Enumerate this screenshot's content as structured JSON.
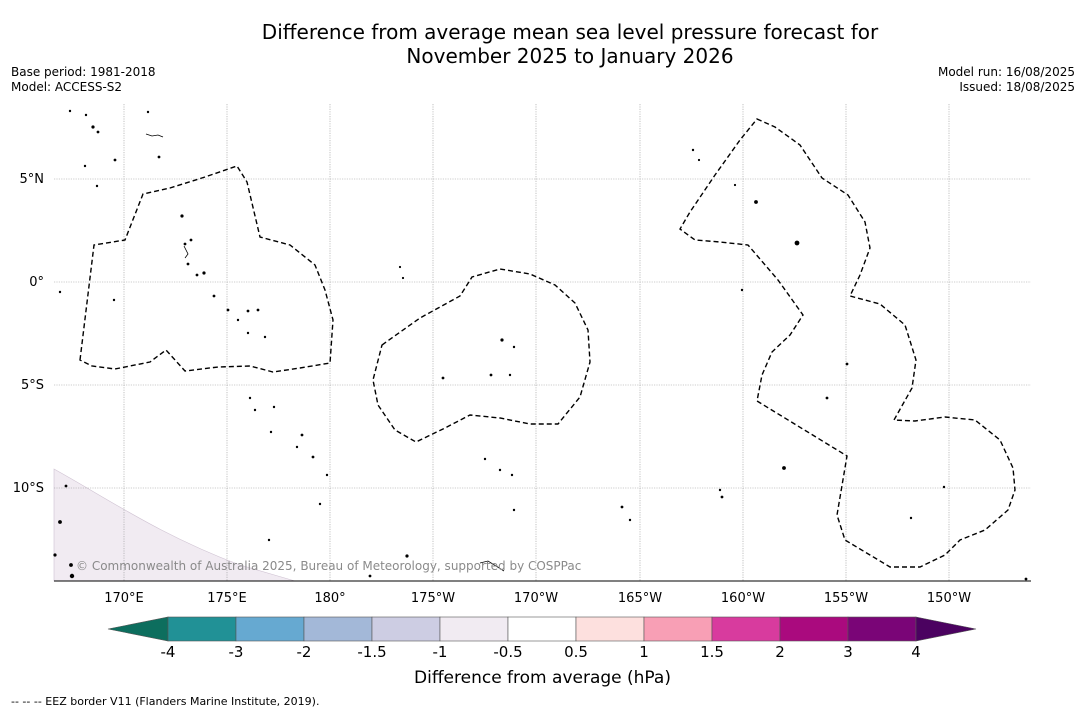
{
  "title": {
    "line1": "Difference from average mean sea level pressure forecast for",
    "line2": "November 2025 to January 2026"
  },
  "meta": {
    "base_period": "Base period: 1981-2018",
    "model": "Model: ACCESS-S2",
    "model_run": "Model run: 16/08/2025",
    "issued": "Issued: 18/08/2025"
  },
  "map": {
    "lon_labels": [
      "170°E",
      "175°E",
      "180°",
      "175°W",
      "170°W",
      "165°W",
      "160°W",
      "155°W",
      "150°W"
    ],
    "lat_labels": [
      "5°N",
      "0°",
      "5°S",
      "10°S"
    ],
    "copyright": "© Commonwealth of Australia 2025, Bureau of Meteorology, supported by COSPPac",
    "anomaly_fill_color": "#f1ebf2"
  },
  "colorbar": {
    "label": "Difference from average (hPa)",
    "ticks": [
      "-4",
      "-3",
      "-2",
      "-1.5",
      "-1",
      "-0.5",
      "0.5",
      "1",
      "1.5",
      "2",
      "3",
      "4"
    ],
    "colors": [
      "#0d6e5e",
      "#219196",
      "#66a9d1",
      "#a3b8d8",
      "#cdcde3",
      "#f1ebf2",
      "#ffffff",
      "#fde0de",
      "#f89fb5",
      "#d83b9e",
      "#aa0a7e",
      "#7a0577",
      "#4b0260"
    ]
  },
  "footer": {
    "legend": "--  --  -- EEZ border V11 (Flanders Marine Institute, 2019)."
  }
}
